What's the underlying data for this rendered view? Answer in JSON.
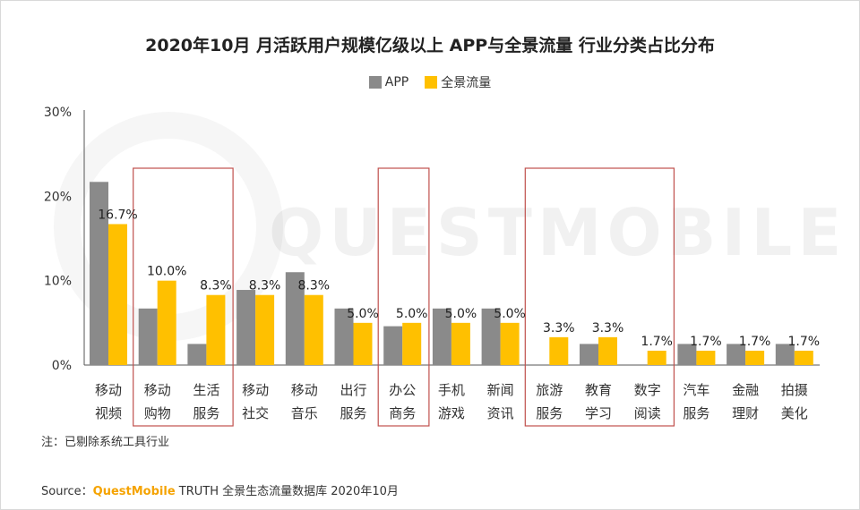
{
  "chart_data": {
    "type": "bar",
    "title": "2020年10月 月活跃用户规模亿级以上 APP与全景流量 行业分类占比分布",
    "legend": [
      "APP",
      "全景流量"
    ],
    "legend_position": "top-center",
    "ylim": [
      0,
      30
    ],
    "yticks": [
      "0%",
      "10%",
      "20%",
      "30%"
    ],
    "grid": false,
    "categories": [
      [
        "移动",
        "视频"
      ],
      [
        "移动",
        "购物"
      ],
      [
        "生活",
        "服务"
      ],
      [
        "移动",
        "社交"
      ],
      [
        "移动",
        "音乐"
      ],
      [
        "出行",
        "服务"
      ],
      [
        "办公",
        "商务"
      ],
      [
        "手机",
        "游戏"
      ],
      [
        "新闻",
        "资讯"
      ],
      [
        "旅游",
        "服务"
      ],
      [
        "教育",
        "学习"
      ],
      [
        "数字",
        "阅读"
      ],
      [
        "汽车",
        "服务"
      ],
      [
        "金融",
        "理财"
      ],
      [
        "拍摄",
        "美化"
      ]
    ],
    "series": [
      {
        "name": "APP",
        "color": "#8a8a8a",
        "values": [
          21.7,
          6.7,
          2.5,
          8.9,
          11.0,
          6.7,
          4.6,
          6.7,
          6.7,
          0,
          2.5,
          0,
          2.5,
          2.5,
          2.5
        ]
      },
      {
        "name": "全景流量",
        "color": "#ffc000",
        "values": [
          16.7,
          10.0,
          8.3,
          8.3,
          8.3,
          5.0,
          5.0,
          5.0,
          5.0,
          3.3,
          3.3,
          1.7,
          1.7,
          1.7,
          1.7
        ],
        "labels": [
          "16.7%",
          "10.0%",
          "8.3%",
          "8.3%",
          "8.3%",
          "5.0%",
          "5.0%",
          "5.0%",
          "5.0%",
          "3.3%",
          "3.3%",
          "1.7%",
          "1.7%",
          "1.7%",
          "1.7%"
        ]
      }
    ],
    "highlight_groups": [
      [
        1,
        2
      ],
      [
        6,
        6
      ],
      [
        9,
        11
      ]
    ],
    "highlight_color": "#c0504d"
  },
  "watermark": "QUESTMOBILE",
  "note": "注：已剔除系统工具行业",
  "source": {
    "prefix": "Source：",
    "brand": "QuestMobile",
    "suffix": " TRUTH 全景生态流量数据库 2020年10月"
  }
}
